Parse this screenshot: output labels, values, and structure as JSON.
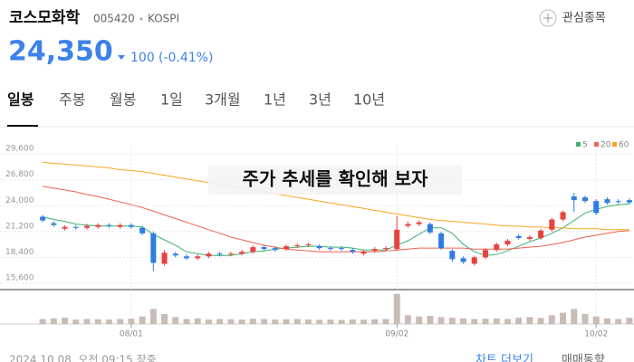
{
  "header": {
    "name": "코스모화학",
    "code": "005420",
    "market": "KOSPI",
    "watch": "관심종목"
  },
  "price": {
    "current": "24,350",
    "change": "100",
    "change_pct": "(-0.41%)"
  },
  "tabs": [
    "일봉",
    "주봉",
    "월봉",
    "1일",
    "3개월",
    "1년",
    "3년",
    "10년"
  ],
  "footer": {
    "timestamp": "2024.10.08. 오전 09:15 장중",
    "more": "차트 더보기",
    "trend": "매매동향"
  },
  "chart_data": {
    "type": "candlestick",
    "annotation": "주가 추세를 확인해 보자",
    "grid": true,
    "up_color": "#e8423f",
    "down_color": "#2f7de1",
    "volume_color": "#c9bcb7",
    "categories": [
      null,
      null,
      null,
      null,
      null,
      null,
      null,
      null,
      "08/01",
      null,
      null,
      null,
      null,
      null,
      null,
      null,
      null,
      null,
      null,
      null,
      null,
      null,
      null,
      null,
      null,
      null,
      null,
      null,
      null,
      null,
      null,
      null,
      "09/02",
      null,
      null,
      null,
      null,
      null,
      null,
      null,
      null,
      null,
      null,
      null,
      null,
      null,
      null,
      null,
      null,
      null,
      "10/02",
      null,
      null,
      null
    ],
    "open": [
      22800,
      22100,
      21500,
      21700,
      21600,
      21700,
      21900,
      21700,
      21900,
      21600,
      21000,
      17700,
      18800,
      18500,
      18300,
      18500,
      18800,
      18700,
      18800,
      19000,
      19500,
      19400,
      19300,
      19600,
      19700,
      19600,
      19400,
      19400,
      19200,
      18800,
      19100,
      19300,
      19300,
      21800,
      22000,
      22000,
      21000,
      19100,
      18300,
      17700,
      18400,
      19200,
      19800,
      20700,
      20400,
      20500,
      21400,
      22500,
      25000,
      24900,
      24500,
      24700,
      24500,
      24600
    ],
    "high": [
      23000,
      22300,
      21900,
      21900,
      22000,
      22100,
      22100,
      22100,
      22100,
      21800,
      21200,
      19200,
      19000,
      18700,
      18700,
      19000,
      19000,
      19000,
      19200,
      19700,
      19700,
      19600,
      19800,
      19900,
      20000,
      19800,
      19600,
      19600,
      19400,
      19200,
      19500,
      19600,
      22900,
      22300,
      22400,
      22200,
      21200,
      19300,
      18500,
      18600,
      19400,
      20000,
      20400,
      20900,
      20800,
      21500,
      22700,
      23500,
      25400,
      25100,
      24700,
      24900,
      24700,
      24800
    ],
    "low": [
      22200,
      21700,
      21300,
      21400,
      21400,
      21500,
      21600,
      21500,
      21500,
      20800,
      16900,
      17500,
      18400,
      18100,
      18100,
      18300,
      18500,
      18500,
      18600,
      18800,
      19100,
      19000,
      19100,
      19400,
      19500,
      19200,
      19100,
      19100,
      18800,
      18600,
      18900,
      19100,
      19100,
      21600,
      21800,
      20900,
      19200,
      17900,
      17700,
      17500,
      18200,
      19000,
      19600,
      20300,
      20200,
      20300,
      21200,
      22300,
      23300,
      24300,
      23000,
      24100,
      24200,
      24100
    ],
    "close": [
      22400,
      21900,
      21700,
      21600,
      21800,
      21900,
      21800,
      21900,
      21700,
      21000,
      17800,
      18900,
      18600,
      18300,
      18500,
      18800,
      18700,
      18800,
      19000,
      19500,
      19300,
      19200,
      19600,
      19700,
      19800,
      19400,
      19300,
      19300,
      19000,
      19000,
      19300,
      19400,
      21400,
      22000,
      22200,
      21100,
      19400,
      18200,
      17900,
      18400,
      19200,
      19800,
      20200,
      20500,
      20600,
      21300,
      22500,
      23300,
      24600,
      24500,
      23200,
      24300,
      24400,
      24350
    ],
    "volume": [
      40000,
      45000,
      50000,
      35000,
      40000,
      38000,
      35000,
      40000,
      42000,
      60000,
      120000,
      80000,
      55000,
      40000,
      45000,
      35000,
      40000,
      38000,
      35000,
      42000,
      40000,
      35000,
      38000,
      40000,
      36000,
      34000,
      35000,
      33000,
      36000,
      34000,
      38000,
      40000,
      240000,
      70000,
      60000,
      65000,
      55000,
      50000,
      45000,
      40000,
      42000,
      45000,
      40000,
      50000,
      55000,
      48000,
      70000,
      90000,
      120000,
      80000,
      60000,
      45000,
      40000,
      50000
    ],
    "volume_lim": [
      0,
      260000
    ],
    "ylim": [
      14900,
      30600
    ],
    "yticks": [
      {
        "value": 15600,
        "label": "15,600"
      },
      {
        "value": 18400,
        "label": "18,400"
      },
      {
        "value": 21200,
        "label": "21,200"
      },
      {
        "value": 24000,
        "label": "24,000"
      },
      {
        "value": 26800,
        "label": "26,800"
      },
      {
        "value": 29600,
        "label": "29,600"
      }
    ],
    "series": [
      {
        "name": "5",
        "color": "#3cb371",
        "values": [
          22800,
          22500,
          22300,
          22000,
          21900,
          21800,
          21800,
          21800,
          21800,
          21700,
          20900,
          20300,
          19700,
          19000,
          18800,
          18600,
          18600,
          18600,
          18800,
          19000,
          19100,
          19300,
          19400,
          19500,
          19600,
          19600,
          19500,
          19500,
          19400,
          19200,
          19200,
          19200,
          19700,
          20200,
          20900,
          21600,
          21600,
          21000,
          19800,
          19000,
          18600,
          18700,
          19100,
          19600,
          20100,
          20500,
          21000,
          21600,
          22400,
          23200,
          23600,
          23900,
          24100,
          24200
        ]
      },
      {
        "name": "20",
        "color": "#f0614f",
        "values": [
          26100,
          25900,
          25700,
          25500,
          25200,
          25000,
          24700,
          24400,
          24100,
          23800,
          23400,
          23000,
          22600,
          22200,
          21800,
          21400,
          21000,
          20600,
          20300,
          20000,
          19700,
          19500,
          19300,
          19200,
          19100,
          19000,
          19000,
          19000,
          19000,
          19000,
          19000,
          19100,
          19200,
          19300,
          19400,
          19400,
          19400,
          19400,
          19400,
          19300,
          19300,
          19300,
          19300,
          19400,
          19500,
          19600,
          19800,
          20000,
          20300,
          20600,
          20800,
          21000,
          21200,
          21300
        ]
      },
      {
        "name": "60",
        "color": "#f5a623",
        "values": [
          28700,
          28600,
          28500,
          28400,
          28300,
          28200,
          28100,
          27900,
          27800,
          27700,
          27500,
          27300,
          27100,
          26900,
          26700,
          26500,
          26300,
          26100,
          25900,
          25700,
          25500,
          25300,
          25100,
          24900,
          24700,
          24500,
          24300,
          24100,
          23900,
          23700,
          23500,
          23300,
          23100,
          22900,
          22700,
          22500,
          22400,
          22300,
          22200,
          22100,
          22000,
          21900,
          21800,
          21800,
          21700,
          21700,
          21600,
          21600,
          21500,
          21500,
          21500,
          21400,
          21400,
          21400
        ]
      }
    ]
  }
}
